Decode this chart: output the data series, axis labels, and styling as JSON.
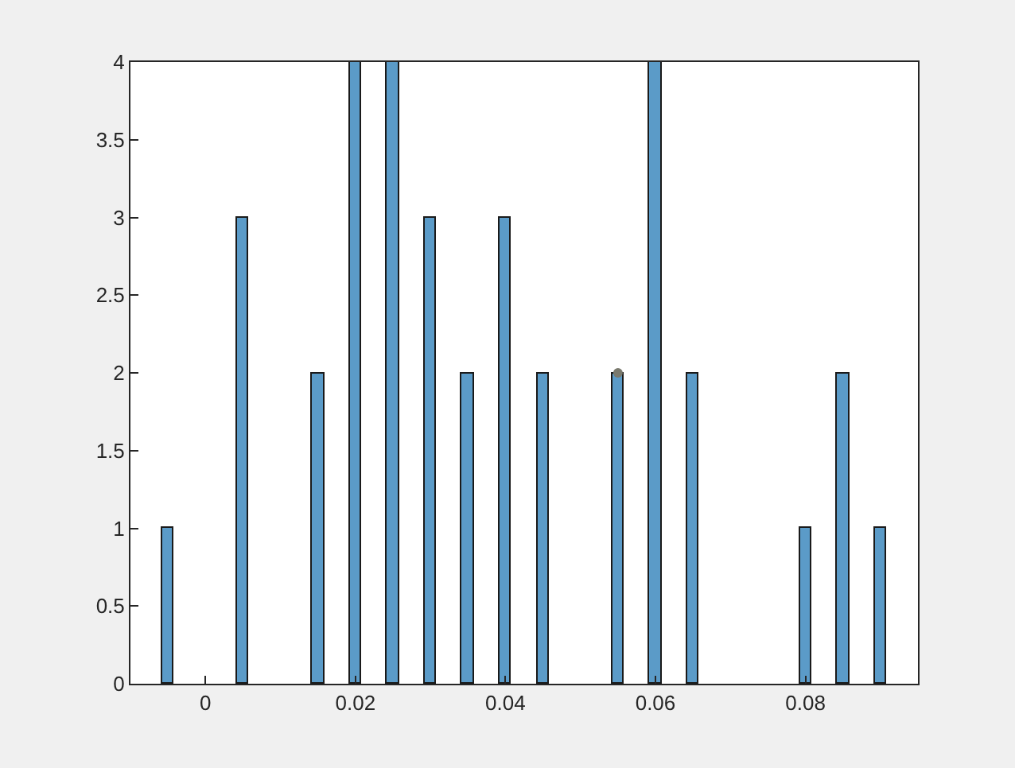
{
  "chart_data": {
    "type": "bar",
    "x": [
      -0.005,
      0.005,
      0.015,
      0.02,
      0.025,
      0.03,
      0.035,
      0.04,
      0.045,
      0.055,
      0.06,
      0.065,
      0.08,
      0.085,
      0.09
    ],
    "series": [
      {
        "color": "#5b9bc8",
        "values": [
          1,
          3,
          2,
          4,
          4,
          3,
          2,
          3,
          2,
          2,
          4,
          2,
          1,
          2,
          1
        ]
      },
      {
        "type": "scatter",
        "color": "#7a7a6e",
        "x": [
          0.055
        ],
        "values": [
          2
        ]
      }
    ],
    "marker": "circle",
    "xlim": [
      -0.01,
      0.095
    ],
    "xticks": [
      0,
      0.02,
      0.04,
      0.06,
      0.08
    ],
    "ylim": [
      0,
      4
    ],
    "yticks": [
      0,
      0.5,
      1,
      1.5,
      2,
      2.5,
      3,
      3.5,
      4
    ],
    "grid": false
  }
}
